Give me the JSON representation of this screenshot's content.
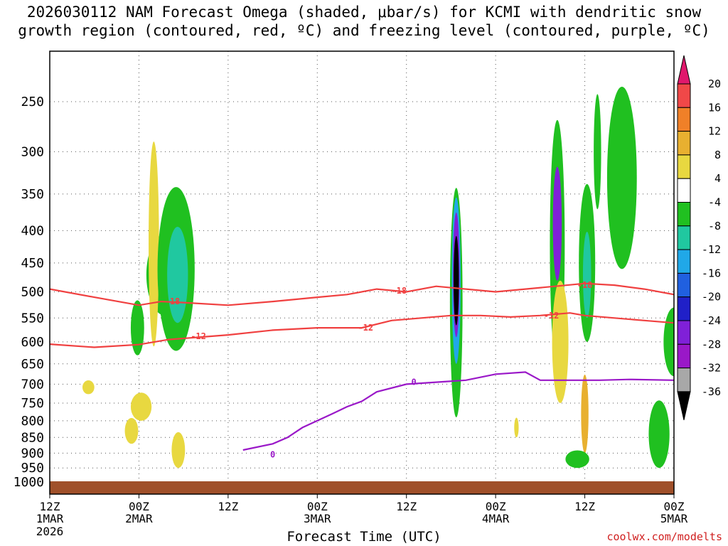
{
  "title": {
    "line1": "2026030112 NAM Forecast Omega (shaded, μbar/s) for KCMI with dendritic snow",
    "line2": "growth region (contoured, red, ºC) and freezing level (contoured, purple, ºC)"
  },
  "credit": "coolwx.com/modelts",
  "colors": {
    "dgz_line": "#f04040",
    "freezing_line": "#9a18c8",
    "terrain": "#a0502a"
  },
  "chart_data": {
    "type": "heatmap",
    "title": "2026030112 NAM Forecast Omega (shaded, μbar/s) for KCMI with dendritic snow growth region (contoured, red, ºC) and freezing level (contoured, purple, ºC)",
    "xlabel": "Forecast Time (UTC)",
    "ylabel": "",
    "x_range_hours": [
      0,
      84
    ],
    "y_range_mb": [
      1000,
      200
    ],
    "y_ticks": [
      "250",
      "300",
      "350",
      "400",
      "450",
      "500",
      "550",
      "600",
      "650",
      "700",
      "750",
      "800",
      "850",
      "900",
      "950",
      "1000"
    ],
    "x_ticks": [
      {
        "hour": 0,
        "top": "12Z",
        "mid": "1MAR",
        "bottom": "2026"
      },
      {
        "hour": 12,
        "top": "00Z",
        "mid": "2MAR",
        "bottom": ""
      },
      {
        "hour": 24,
        "top": "12Z",
        "mid": "",
        "bottom": ""
      },
      {
        "hour": 36,
        "top": "00Z",
        "mid": "3MAR",
        "bottom": ""
      },
      {
        "hour": 48,
        "top": "12Z",
        "mid": "",
        "bottom": ""
      },
      {
        "hour": 60,
        "top": "00Z",
        "mid": "4MAR",
        "bottom": ""
      },
      {
        "hour": 72,
        "top": "12Z",
        "mid": "",
        "bottom": ""
      },
      {
        "hour": 84,
        "top": "00Z",
        "mid": "5MAR",
        "bottom": ""
      }
    ],
    "colorbar": {
      "labels": [
        "20",
        "16",
        "12",
        "8",
        "4",
        "-4",
        "-8",
        "-12",
        "-16",
        "-20",
        "-24",
        "-28",
        "-32",
        "-36"
      ],
      "colors": [
        "#e0186c",
        "#f04848",
        "#f08028",
        "#e8b030",
        "#e8d840",
        "#ffffff",
        "#20c020",
        "#20c8a0",
        "#20a8e8",
        "#2060e0",
        "#2020c8",
        "#8020d8",
        "#9a18c8",
        "#a8a8a8",
        "#000000"
      ]
    },
    "contours": [
      {
        "name": "-18",
        "color": "#f04040",
        "points_hour_mb": [
          [
            0,
            495
          ],
          [
            6,
            510
          ],
          [
            12,
            525
          ],
          [
            15,
            518
          ],
          [
            18,
            520
          ],
          [
            24,
            525
          ],
          [
            30,
            518
          ],
          [
            36,
            510
          ],
          [
            40,
            505
          ],
          [
            44,
            495
          ],
          [
            48,
            500
          ],
          [
            52,
            490
          ],
          [
            56,
            495
          ],
          [
            60,
            500
          ],
          [
            64,
            495
          ],
          [
            68,
            490
          ],
          [
            72,
            485
          ],
          [
            76,
            488
          ],
          [
            80,
            495
          ],
          [
            84,
            505
          ]
        ]
      },
      {
        "name": "-12",
        "color": "#f04040",
        "points_hour_mb": [
          [
            0,
            605
          ],
          [
            6,
            612
          ],
          [
            12,
            606
          ],
          [
            16,
            595
          ],
          [
            20,
            590
          ],
          [
            24,
            585
          ],
          [
            30,
            575
          ],
          [
            36,
            570
          ],
          [
            42,
            570
          ],
          [
            46,
            555
          ],
          [
            50,
            550
          ],
          [
            54,
            545
          ],
          [
            58,
            545
          ],
          [
            62,
            548
          ],
          [
            66,
            545
          ],
          [
            70,
            540
          ],
          [
            72,
            545
          ],
          [
            76,
            550
          ],
          [
            80,
            555
          ],
          [
            84,
            560
          ]
        ]
      },
      {
        "name": "0",
        "color": "#9a18c8",
        "points_hour_mb": [
          [
            26,
            890
          ],
          [
            30,
            870
          ],
          [
            32,
            850
          ],
          [
            34,
            820
          ],
          [
            38,
            780
          ],
          [
            40,
            760
          ],
          [
            42,
            745
          ],
          [
            44,
            720
          ],
          [
            48,
            700
          ],
          [
            52,
            695
          ],
          [
            56,
            690
          ],
          [
            60,
            675
          ],
          [
            64,
            670
          ],
          [
            66,
            690
          ],
          [
            70,
            690
          ],
          [
            74,
            690
          ],
          [
            78,
            688
          ],
          [
            84,
            690
          ]
        ]
      }
    ],
    "contour_labels": [
      {
        "text": "-18",
        "hour": 16.5,
        "mb": 518
      },
      {
        "text": "-12",
        "hour": 20,
        "mb": 588
      },
      {
        "text": "-18",
        "hour": 47,
        "mb": 498
      },
      {
        "text": "-12",
        "hour": 42.5,
        "mb": 570
      },
      {
        "text": "-12",
        "hour": 67.5,
        "mb": 545
      },
      {
        "text": "-18",
        "hour": 72,
        "mb": 488
      },
      {
        "text": "0",
        "hour": 49,
        "mb": 695
      },
      {
        "text": "0",
        "hour": 30,
        "mb": 905
      }
    ]
  },
  "xaxis_title": "Forecast Time (UTC)"
}
